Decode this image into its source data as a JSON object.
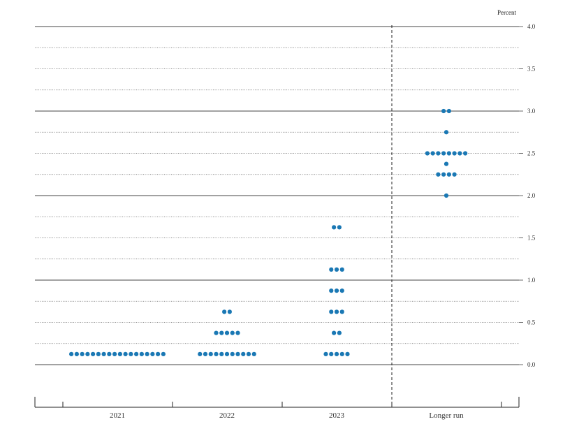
{
  "chart_data": {
    "type": "scatter",
    "title": "",
    "ylabel": "Percent",
    "ylim": [
      -0.5,
      4.0
    ],
    "yticks": [
      "0.0",
      "0.5",
      "1.0",
      "1.5",
      "2.0",
      "2.5",
      "3.0",
      "3.5",
      "4.0"
    ],
    "categories": [
      "2021",
      "2022",
      "2023",
      "Longer run"
    ],
    "dot_color": "#1a78b4",
    "series": [
      {
        "category": "2021",
        "points": [
          {
            "y": 0.125,
            "count": 18
          }
        ]
      },
      {
        "category": "2022",
        "points": [
          {
            "y": 0.125,
            "count": 11
          },
          {
            "y": 0.375,
            "count": 5
          },
          {
            "y": 0.625,
            "count": 2
          }
        ]
      },
      {
        "category": "2023",
        "points": [
          {
            "y": 0.125,
            "count": 5
          },
          {
            "y": 0.375,
            "count": 2
          },
          {
            "y": 0.625,
            "count": 3
          },
          {
            "y": 0.875,
            "count": 3
          },
          {
            "y": 1.125,
            "count": 3
          },
          {
            "y": 1.625,
            "count": 2
          }
        ]
      },
      {
        "category": "Longer run",
        "points": [
          {
            "y": 2.0,
            "count": 1
          },
          {
            "y": 2.25,
            "count": 4
          },
          {
            "y": 2.375,
            "count": 1
          },
          {
            "y": 2.5,
            "count": 8
          },
          {
            "y": 2.75,
            "count": 1
          },
          {
            "y": 3.0,
            "count": 2
          }
        ]
      }
    ]
  }
}
